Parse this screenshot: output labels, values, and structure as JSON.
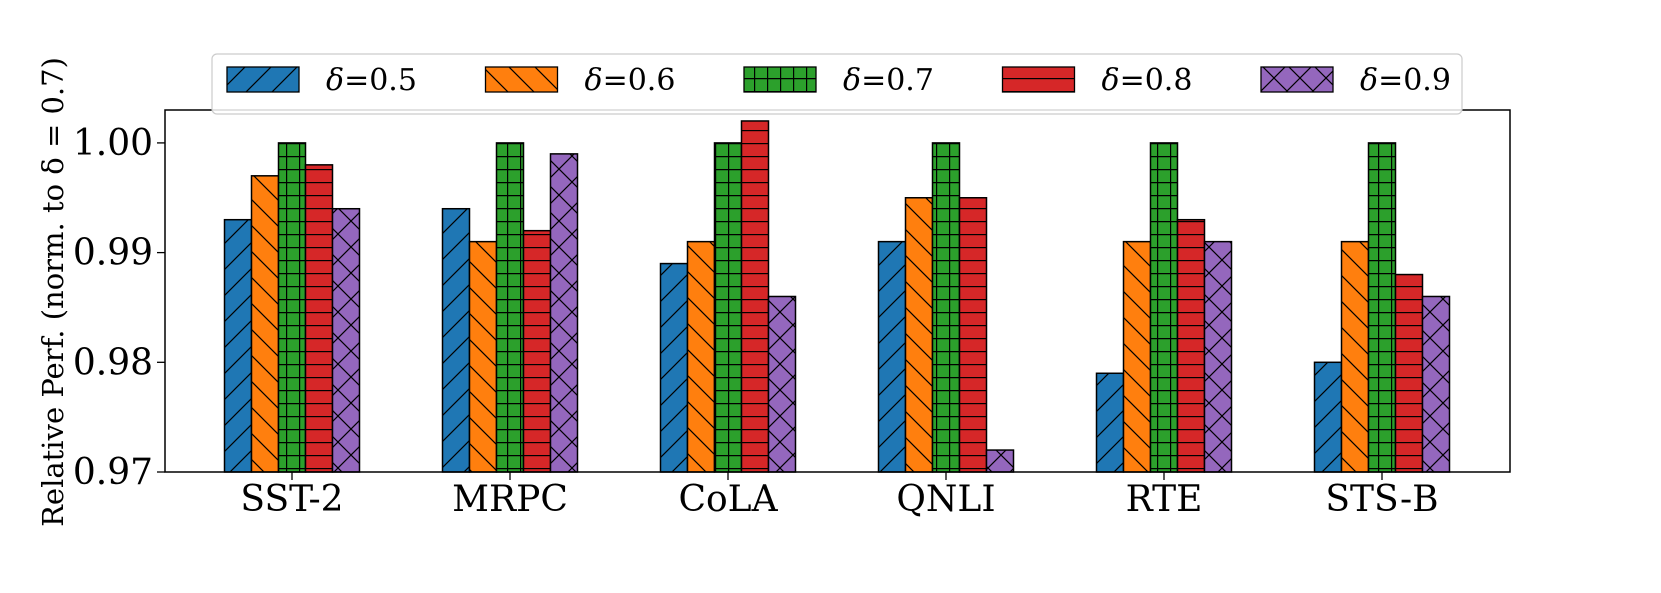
{
  "chart_data": {
    "type": "bar",
    "title": "",
    "xlabel": "",
    "ylabel": "Relative Perf. (norm. to δ = 0.7)",
    "ylim": [
      0.97,
      1.003
    ],
    "yticks": [
      0.97,
      0.98,
      0.99,
      1.0
    ],
    "ytick_labels": [
      "0.97",
      "0.98",
      "0.99",
      "1.00"
    ],
    "grid": false,
    "legend_position": "top",
    "categories": [
      "SST-2",
      "MRPC",
      "CoLA",
      "QNLI",
      "RTE",
      "STS-B"
    ],
    "series": [
      {
        "name": "δ=0.5",
        "symbol": "δ",
        "value_label": "=0.5",
        "color": "#1f77b4",
        "hatch": "diag-forward",
        "values": [
          0.993,
          0.994,
          0.989,
          0.991,
          0.979,
          0.98
        ]
      },
      {
        "name": "δ=0.6",
        "symbol": "δ",
        "value_label": "=0.6",
        "color": "#ff7f0e",
        "hatch": "diag-back",
        "values": [
          0.997,
          0.991,
          0.991,
          0.995,
          0.991,
          0.991
        ]
      },
      {
        "name": "δ=0.7",
        "symbol": "δ",
        "value_label": "=0.7",
        "color": "#2ca02c",
        "hatch": "grid",
        "values": [
          1.0,
          1.0,
          1.0,
          1.0,
          1.0,
          1.0
        ]
      },
      {
        "name": "δ=0.8",
        "symbol": "δ",
        "value_label": "=0.8",
        "color": "#d62728",
        "hatch": "horizontal",
        "values": [
          0.998,
          0.992,
          1.002,
          0.995,
          0.993,
          0.988
        ]
      },
      {
        "name": "δ=0.9",
        "symbol": "δ",
        "value_label": "=0.9",
        "color": "#9467bd",
        "hatch": "cross",
        "values": [
          0.994,
          0.999,
          0.986,
          0.972,
          0.991,
          0.986
        ]
      }
    ]
  }
}
